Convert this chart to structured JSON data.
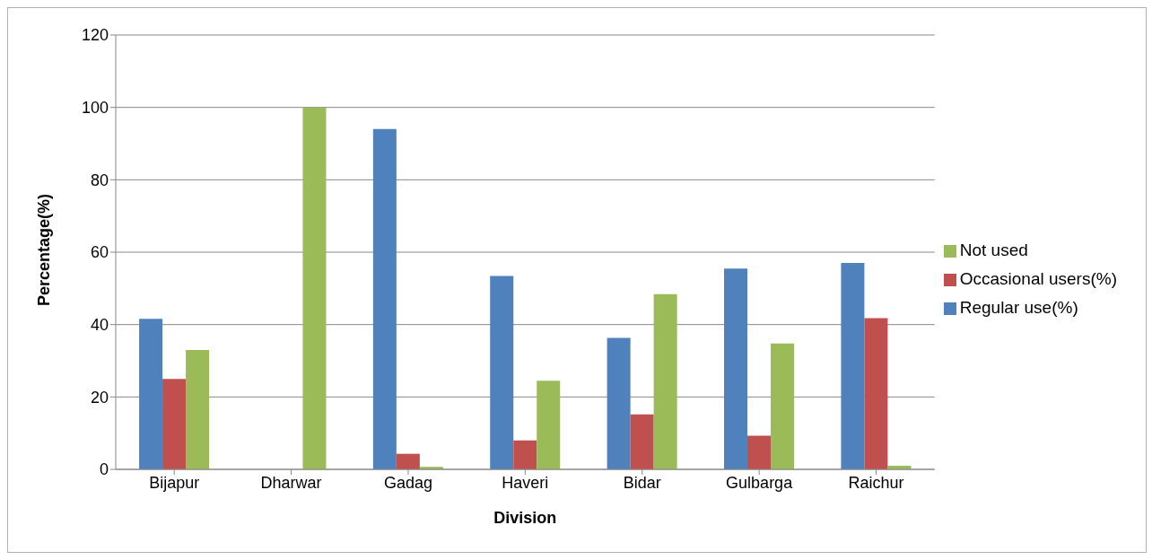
{
  "chart_data": {
    "type": "bar",
    "xlabel": "Division",
    "ylabel": "Percentage(%)",
    "categories": [
      "Bijapur",
      "Dharwar",
      "Gadag",
      "Haveri",
      "Bidar",
      "Gulbarga",
      "Raichur"
    ],
    "series": [
      {
        "name": "Regular use(%)",
        "color": "#4f81bd",
        "values": [
          41.6,
          0,
          94,
          53.4,
          36.3,
          55.5,
          57
        ]
      },
      {
        "name": "Occasional users(%)",
        "color": "#c0504d",
        "values": [
          25,
          0,
          4.3,
          8,
          15.2,
          9.3,
          41.8
        ]
      },
      {
        "name": "Not used",
        "color": "#9bbb59",
        "values": [
          33,
          100,
          0.7,
          24.5,
          48.4,
          34.8,
          1
        ]
      }
    ],
    "ylim": [
      0,
      120
    ],
    "yticks": [
      0,
      20,
      40,
      60,
      80,
      100,
      120
    ],
    "grid": "y",
    "legend": "right"
  }
}
